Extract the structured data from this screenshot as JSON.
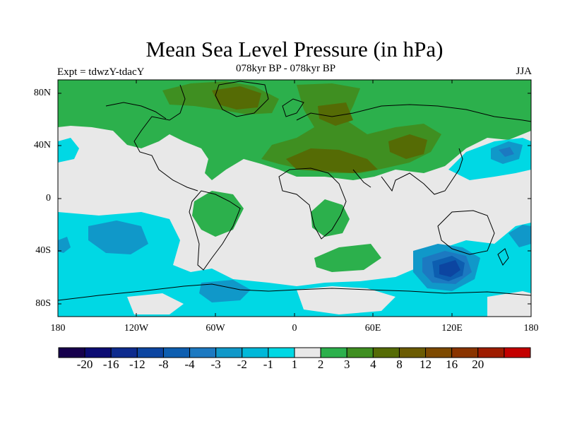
{
  "title": "Mean Sea Level Pressure (in hPa)",
  "subtitle_left": "Expt = tdwzY-tdacY",
  "subtitle_center": "078kyr BP - 078kyr BP",
  "subtitle_right": "JJA",
  "lat_labels": [
    "80N",
    "40N",
    "0",
    "40S",
    "80S"
  ],
  "lon_labels": [
    "180",
    "120W",
    "60W",
    "0",
    "60E",
    "120E",
    "180"
  ],
  "colorbar": {
    "colors": [
      "#16004d",
      "#0b0b73",
      "#0d2b8e",
      "#0c45a1",
      "#0d5eb0",
      "#1c79c1",
      "#1098c9",
      "#00b8d9",
      "#00d8e4",
      "#e8e8e8",
      "#2cb04c",
      "#3f8f21",
      "#556b05",
      "#6b5b02",
      "#7d4900",
      "#8a3400",
      "#9e1c00",
      "#c40000"
    ],
    "labels": [
      "-20",
      "-16",
      "-12",
      "-8",
      "-4",
      "-3",
      "-2",
      "-1",
      "1",
      "2",
      "3",
      "4",
      "8",
      "12",
      "16",
      "20"
    ]
  },
  "chart_data": {
    "type": "heatmap",
    "title": "Mean Sea Level Pressure (in hPa)",
    "subtitle": "078kyr BP - 078kyr BP",
    "experiment": "Expt = tdwzY-tdacY",
    "season": "JJA",
    "x_range": [
      -180,
      180
    ],
    "y_range": [
      -90,
      90
    ],
    "contour_levels": [
      -20,
      -16,
      -12,
      -8,
      -4,
      -3,
      -2,
      -1,
      1,
      2,
      3,
      4,
      8,
      12,
      16,
      20
    ]
  }
}
